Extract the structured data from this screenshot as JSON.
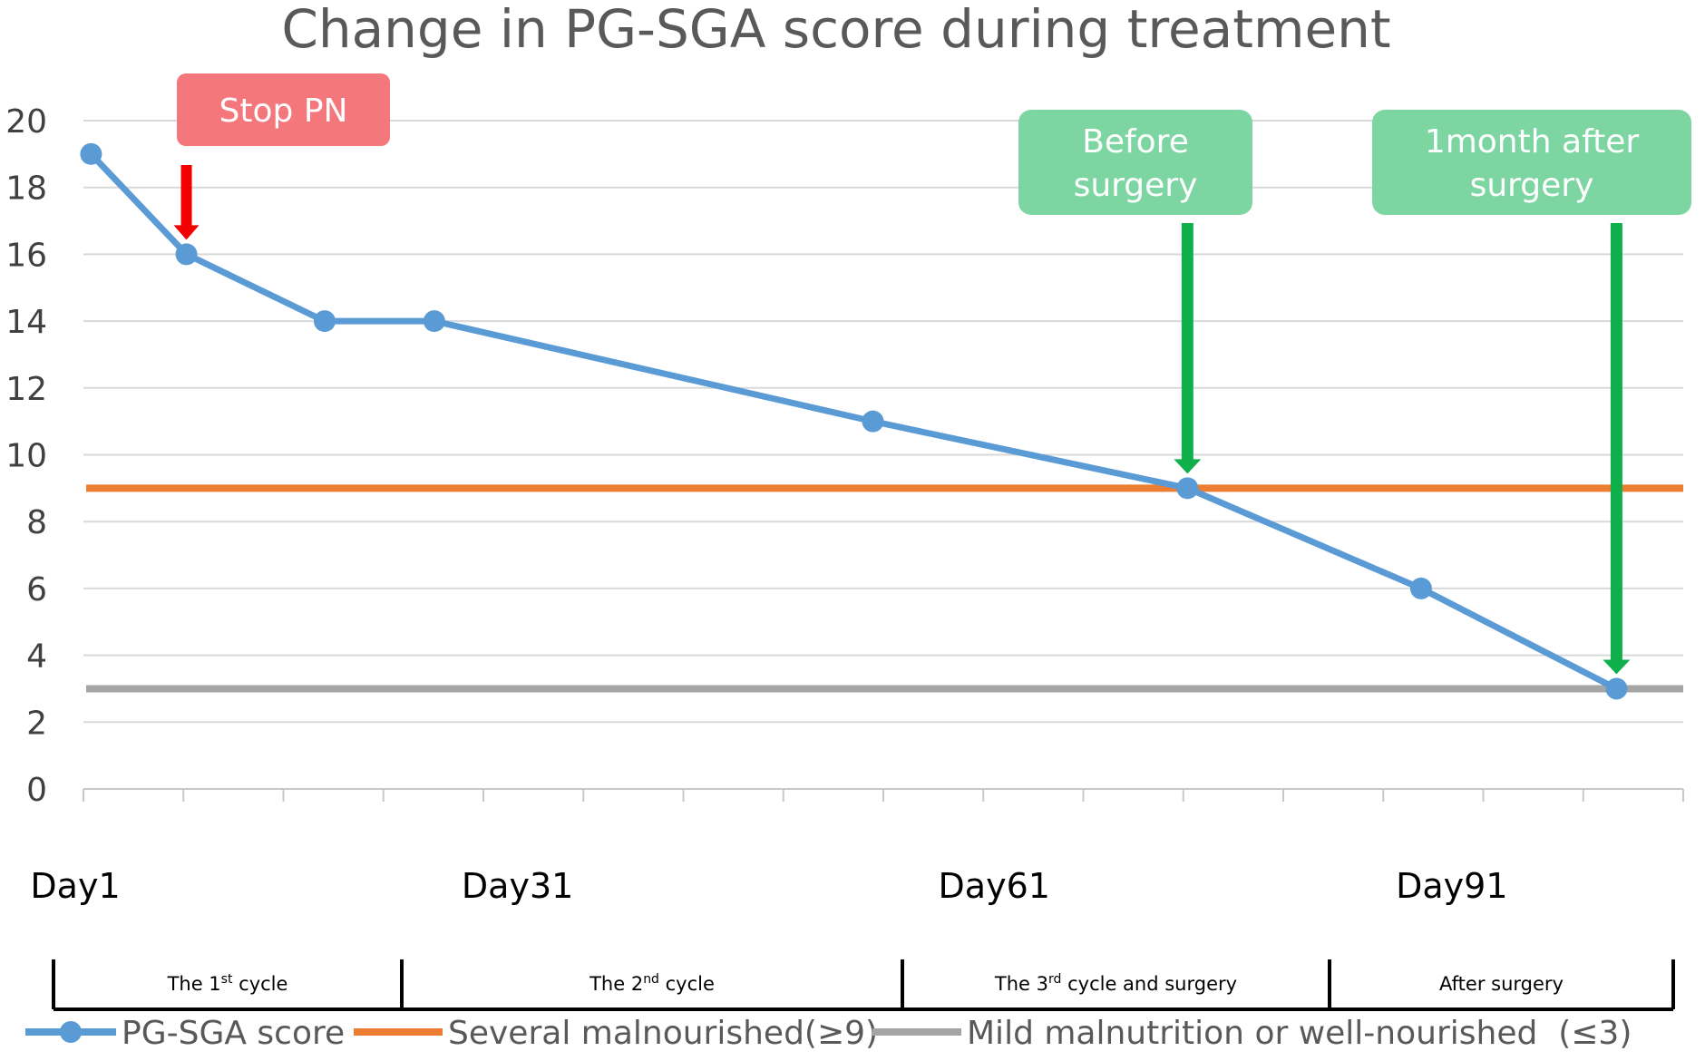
{
  "chart_data": {
    "type": "line",
    "title": "Change in PG-SGA score during treatment",
    "ylim": [
      0,
      20
    ],
    "yticks": [
      "0",
      "2",
      "4",
      "6",
      "8",
      "10",
      "12",
      "14",
      "16",
      "18",
      "20"
    ],
    "grid": true,
    "x": [
      0,
      1,
      2.45,
      3.6,
      8.2,
      11.5,
      13.95,
      16
    ],
    "x_range": [
      -0.08,
      16.7
    ],
    "x_ticks_count": 16,
    "x_labels": [
      {
        "label": "Day1",
        "x": 0
      },
      {
        "label": "Day31",
        "x": 4
      },
      {
        "label": "Day61",
        "x": 9
      },
      {
        "label": "Day91",
        "x": 13.8
      }
    ],
    "series": [
      {
        "name": "PG-SGA score",
        "color": "#5B9BD5",
        "values": [
          19,
          16,
          14,
          14,
          11,
          9,
          6,
          3
        ]
      },
      {
        "name": "Several malnourished(≥9)",
        "color": "#ED7D31",
        "constant": 9
      },
      {
        "name": "Mild malnutrition or well-nourished  (≤3)",
        "color": "#A5A5A5",
        "constant": 3
      }
    ],
    "annotations": [
      {
        "text_lines": [
          "Stop PN"
        ],
        "box_color": "#F4777C",
        "arrow_color": "#F20000",
        "target_x": 1,
        "target_y": 16
      },
      {
        "text_lines": [
          "Before",
          "surgery"
        ],
        "box_color": "#7DD6A1",
        "arrow_color": "#0FB04B",
        "target_x": 11.5,
        "target_y": 9
      },
      {
        "text_lines": [
          "1month after",
          "surgery"
        ],
        "box_color": "#7DD6A1",
        "arrow_color": "#0FB04B",
        "target_x": 16,
        "target_y": 3
      }
    ],
    "phases": [
      {
        "label": "The 1",
        "sup": "st",
        "suffix": " cycle"
      },
      {
        "label": "The 2",
        "sup": "nd",
        "suffix": " cycle"
      },
      {
        "label": "The 3",
        "sup": "rd",
        "suffix": " cycle and surgery"
      },
      {
        "label": "After surgery",
        "sup": "",
        "suffix": ""
      }
    ]
  }
}
